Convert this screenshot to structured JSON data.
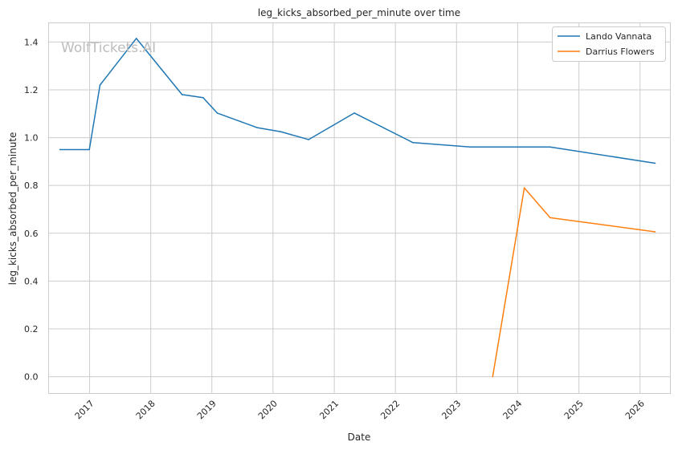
{
  "chart_data": {
    "type": "line",
    "title": "leg_kicks_absorbed_per_minute over time",
    "xlabel": "Date",
    "ylabel": "leg_kicks_absorbed_per_minute",
    "watermark": "WolfTickets.AI",
    "grid": true,
    "legend_position": "top-right",
    "ylim": [
      -0.07,
      1.48
    ],
    "xlim": [
      "2016-05-01",
      "2026-07-01"
    ],
    "x_ticks": [
      "2017",
      "2018",
      "2019",
      "2020",
      "2021",
      "2022",
      "2023",
      "2024",
      "2025",
      "2026"
    ],
    "y_ticks": [
      0.0,
      0.2,
      0.4,
      0.6,
      0.8,
      1.0,
      1.2,
      1.4
    ],
    "series": [
      {
        "name": "Lando Vannata",
        "color": "#1f77b4",
        "points": [
          {
            "x": "2016-07-08",
            "y": 0.95
          },
          {
            "x": "2016-12-30",
            "y": 0.95
          },
          {
            "x": "2017-03-04",
            "y": 1.22
          },
          {
            "x": "2017-10-07",
            "y": 1.415
          },
          {
            "x": "2018-07-07",
            "y": 1.18
          },
          {
            "x": "2018-11-10",
            "y": 1.167
          },
          {
            "x": "2019-02-02",
            "y": 1.103
          },
          {
            "x": "2019-09-28",
            "y": 1.042
          },
          {
            "x": "2020-02-15",
            "y": 1.025
          },
          {
            "x": "2020-08-01",
            "y": 0.992
          },
          {
            "x": "2021-05-01",
            "y": 1.103
          },
          {
            "x": "2022-04-16",
            "y": 0.979
          },
          {
            "x": "2023-03-25",
            "y": 0.961
          },
          {
            "x": "2024-07-13",
            "y": 0.961
          },
          {
            "x": "2026-04-01",
            "y": 0.893
          }
        ]
      },
      {
        "name": "Darrius Flowers",
        "color": "#ff7f0e",
        "points": [
          {
            "x": "2023-08-05",
            "y": 0.0
          },
          {
            "x": "2024-02-10",
            "y": 0.79
          },
          {
            "x": "2024-07-13",
            "y": 0.665
          },
          {
            "x": "2026-04-01",
            "y": 0.606
          }
        ]
      }
    ]
  }
}
